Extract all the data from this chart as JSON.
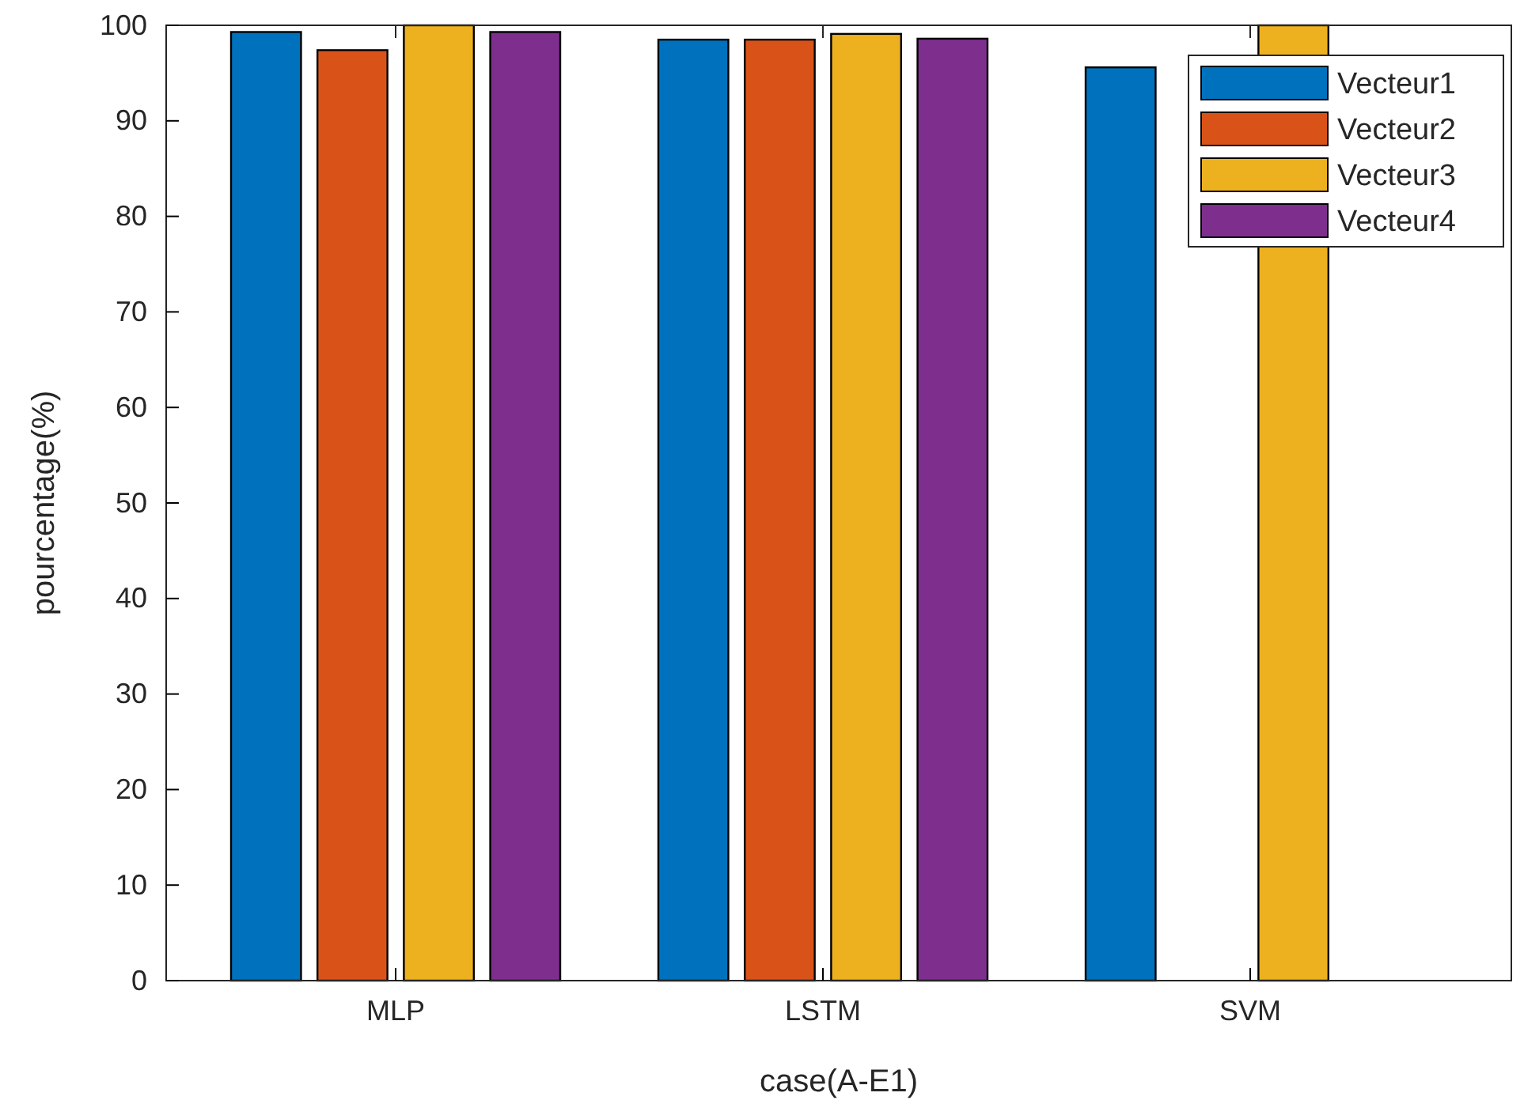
{
  "chart_data": {
    "type": "bar",
    "xlabel": "case(A-E1)",
    "ylabel": "pourcentage(%)",
    "categories": [
      "MLP",
      "LSTM",
      "SVM"
    ],
    "series": [
      {
        "name": "Vecteur1",
        "color": "#0072bd",
        "values": [
          99.3,
          98.5,
          95.6
        ]
      },
      {
        "name": "Vecteur2",
        "color": "#d95319",
        "values": [
          97.4,
          98.5,
          null
        ]
      },
      {
        "name": "Vecteur3",
        "color": "#edb120",
        "values": [
          100,
          99.1,
          100
        ]
      },
      {
        "name": "Vecteur4",
        "color": "#7e2f8e",
        "values": [
          99.3,
          98.6,
          null
        ]
      }
    ],
    "ylim": [
      0,
      100
    ],
    "yticks": [
      0,
      10,
      20,
      30,
      40,
      50,
      60,
      70,
      80,
      90,
      100
    ],
    "legend": "top right"
  }
}
